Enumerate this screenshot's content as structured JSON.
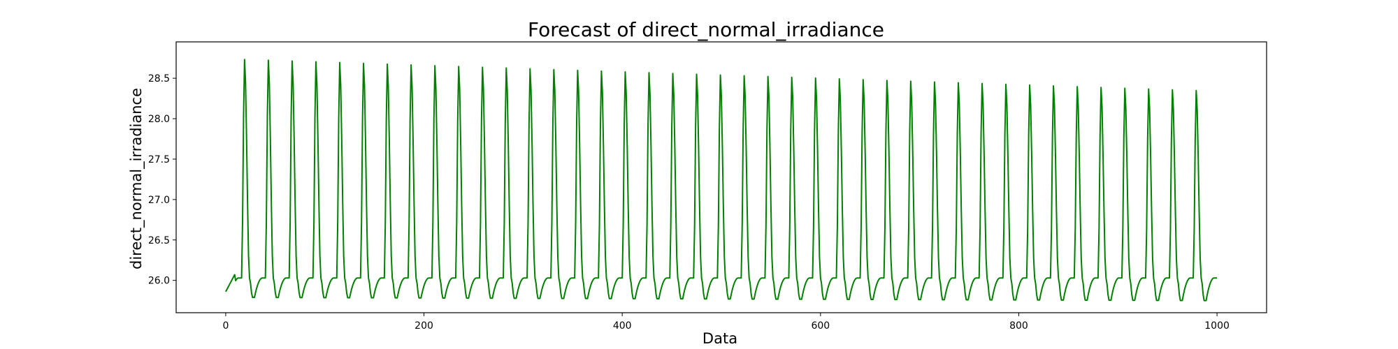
{
  "chart_data": {
    "type": "line",
    "title": "Forecast of direct_normal_irradiance",
    "xlabel": "Data",
    "ylabel": "direct_normal_irradiance",
    "xlim": [
      -50,
      1050
    ],
    "ylim": [
      25.6,
      28.95
    ],
    "grid": false,
    "xticks": [
      0,
      200,
      400,
      600,
      800,
      1000
    ],
    "xtick_labels": [
      "0",
      "200",
      "400",
      "600",
      "800",
      "1000"
    ],
    "yticks": [
      26.0,
      26.5,
      27.0,
      27.5,
      28.0,
      28.5
    ],
    "ytick_labels": [
      "26.0",
      "26.5",
      "27.0",
      "27.5",
      "28.0",
      "28.5"
    ],
    "series": [
      {
        "color": "#008000",
        "period": 24,
        "x_start": 0,
        "x_end": 1000,
        "baseline": 26.03,
        "trough_start": 25.79,
        "trough_end": 25.75,
        "peak_start": 28.74,
        "peak_end": 28.34,
        "initial_segment": [
          [
            0,
            25.86
          ],
          [
            3,
            25.93
          ],
          [
            6,
            26.0
          ],
          [
            9,
            26.07
          ]
        ]
      }
    ]
  }
}
